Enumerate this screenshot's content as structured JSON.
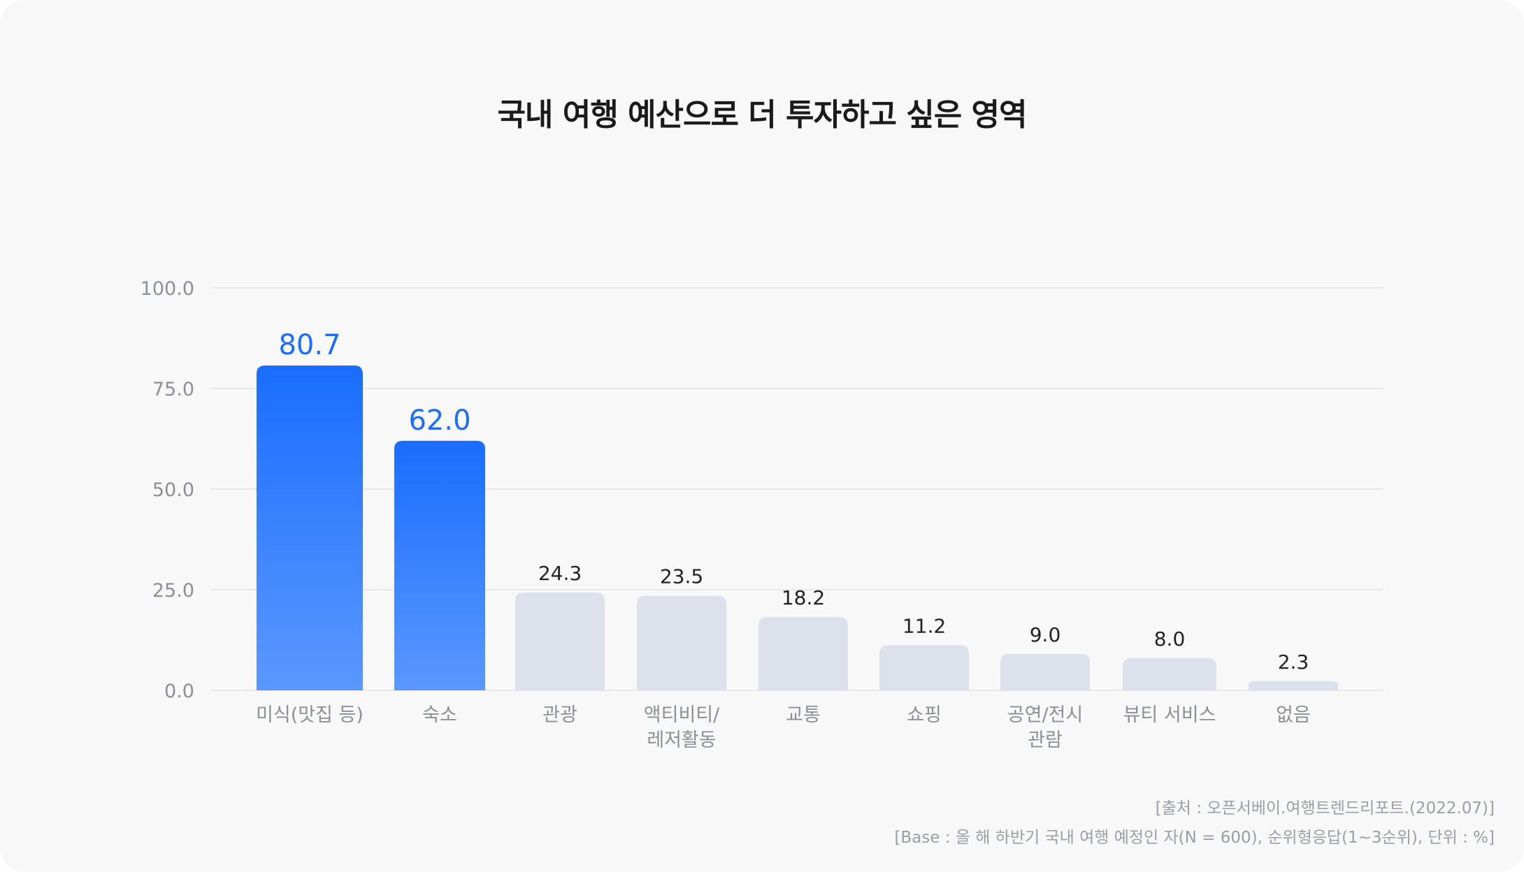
{
  "chart_data": {
    "type": "bar",
    "title": "국내 여행 예산으로 더 투자하고 싶은 영역",
    "categories": [
      "미식(맛집 등)",
      "숙소",
      "관광",
      "액티비티/\n레저활동",
      "교통",
      "쇼핑",
      "공연/전시\n관람",
      "뷰티 서비스",
      "없음"
    ],
    "values": [
      80.7,
      62.0,
      24.3,
      23.5,
      18.2,
      11.2,
      9.0,
      8.0,
      2.3
    ],
    "value_labels": [
      "80.7",
      "62.0",
      "24.3",
      "23.5",
      "18.2",
      "11.2",
      "9.0",
      "8.0",
      "2.3"
    ],
    "highlighted": [
      true,
      true,
      false,
      false,
      false,
      false,
      false,
      false,
      false
    ],
    "ylim": [
      0,
      100
    ],
    "yticks": [
      0,
      25,
      50,
      75,
      100
    ],
    "ytick_labels": [
      "0.0",
      "25.0",
      "50.0",
      "75.0",
      "100.0"
    ],
    "xlabel": "",
    "ylabel": "",
    "grid": true,
    "colors": {
      "highlight_top": "#1a6dff",
      "highlight_bottom": "#5a98ff",
      "highlight_label": "#1a6dff",
      "normal_bar": "#dde1ec",
      "normal_label": "#222222",
      "gridline": "#e1e1e4",
      "axis_text": "#8c8f96"
    }
  },
  "source": {
    "line1": "[출처 : 오픈서베이.여행트렌드리포트.(2022.07)]",
    "line2": "[Base : 올 해 하반기 국내 여행 예정인 자(N = 600), 순위형응답(1~3순위), 단위 : %]"
  }
}
